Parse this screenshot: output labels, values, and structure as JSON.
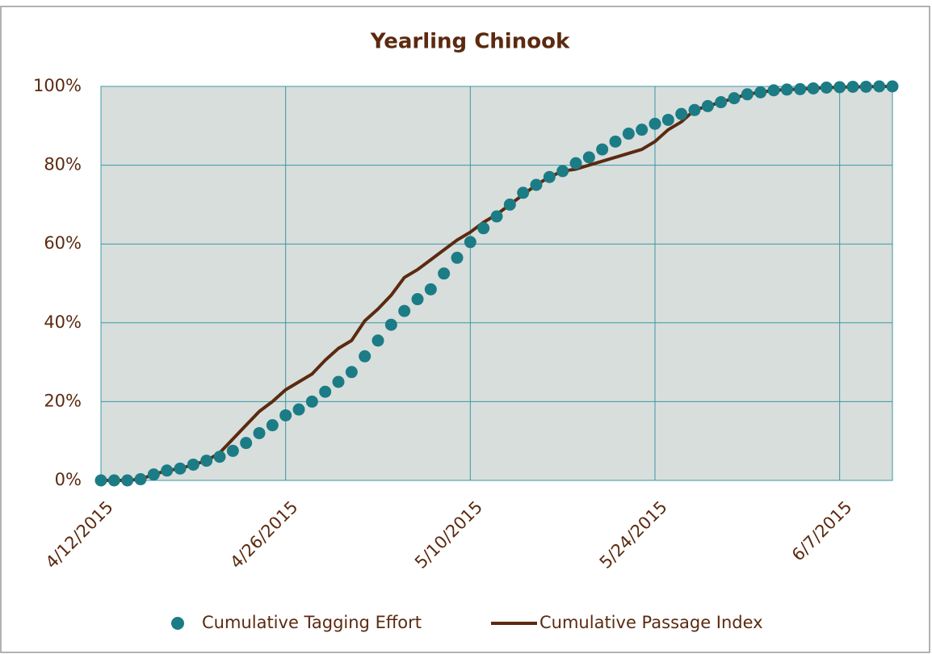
{
  "chart_data": {
    "type": "scatter-line",
    "title": "Yearling Chinook",
    "x": [
      "4/12/2015",
      "4/13/2015",
      "4/14/2015",
      "4/15/2015",
      "4/16/2015",
      "4/17/2015",
      "4/18/2015",
      "4/19/2015",
      "4/20/2015",
      "4/21/2015",
      "4/22/2015",
      "4/23/2015",
      "4/24/2015",
      "4/25/2015",
      "4/26/2015",
      "4/27/2015",
      "4/28/2015",
      "4/29/2015",
      "4/30/2015",
      "5/1/2015",
      "5/2/2015",
      "5/3/2015",
      "5/4/2015",
      "5/5/2015",
      "5/6/2015",
      "5/7/2015",
      "5/8/2015",
      "5/9/2015",
      "5/10/2015",
      "5/11/2015",
      "5/12/2015",
      "5/13/2015",
      "5/14/2015",
      "5/15/2015",
      "5/16/2015",
      "5/17/2015",
      "5/18/2015",
      "5/19/2015",
      "5/20/2015",
      "5/21/2015",
      "5/22/2015",
      "5/23/2015",
      "5/24/2015",
      "5/25/2015",
      "5/26/2015",
      "5/27/2015",
      "5/28/2015",
      "5/29/2015",
      "5/30/2015",
      "5/31/2015",
      "6/1/2015",
      "6/2/2015",
      "6/3/2015",
      "6/4/2015",
      "6/5/2015",
      "6/6/2015",
      "6/7/2015",
      "6/8/2015",
      "6/9/2015",
      "6/10/2015",
      "6/11/2015"
    ],
    "series": [
      {
        "name": "Cumulative Tagging Effort",
        "color": "#1b7c86",
        "values": [
          0,
          0,
          0,
          0.3,
          1.5,
          2.5,
          3,
          4,
          5,
          6,
          7.5,
          9.5,
          12,
          14,
          16.5,
          18,
          20,
          22.5,
          25,
          27.5,
          31.5,
          35.5,
          39.5,
          43,
          46,
          48.5,
          52.5,
          56.5,
          60.5,
          64,
          67,
          70,
          73,
          75,
          77,
          78.5,
          80.5,
          82,
          84,
          86,
          88,
          89,
          90.5,
          91.5,
          93,
          94,
          95,
          96,
          97,
          98,
          98.5,
          99,
          99.2,
          99.3,
          99.5,
          99.7,
          99.8,
          99.9,
          99.9,
          100,
          100
        ]
      },
      {
        "name": "Cumulative Passage Index",
        "color": "#5b2a10",
        "values": [
          0,
          0,
          0,
          0.3,
          1.5,
          2.5,
          3,
          4,
          5,
          7,
          10.5,
          14,
          17.5,
          20,
          23,
          25,
          27,
          30.5,
          33.5,
          35.5,
          40.5,
          43.5,
          47,
          51.5,
          53.5,
          56,
          58.5,
          61,
          63,
          65.5,
          67.5,
          70,
          72.5,
          75,
          77,
          78.5,
          79,
          80,
          81,
          82,
          83,
          84,
          86,
          89,
          91,
          94,
          95,
          96,
          97,
          98,
          98.5,
          99,
          99.2,
          99.3,
          99.5,
          99.7,
          99.8,
          99.9,
          99.9,
          100,
          100
        ]
      }
    ],
    "xlim": [
      "4/12/2015",
      "6/11/2015"
    ],
    "xticks": [
      "4/12/2015",
      "4/26/2015",
      "5/10/2015",
      "5/24/2015",
      "6/7/2015"
    ],
    "ylim": [
      0,
      100
    ],
    "yticks": [
      {
        "value": 0,
        "label": "0%"
      },
      {
        "value": 20,
        "label": "20%"
      },
      {
        "value": 40,
        "label": "40%"
      },
      {
        "value": 60,
        "label": "60%"
      },
      {
        "value": 80,
        "label": "80%"
      },
      {
        "value": 100,
        "label": "100%"
      }
    ],
    "grid": true,
    "legend": "bottom"
  }
}
